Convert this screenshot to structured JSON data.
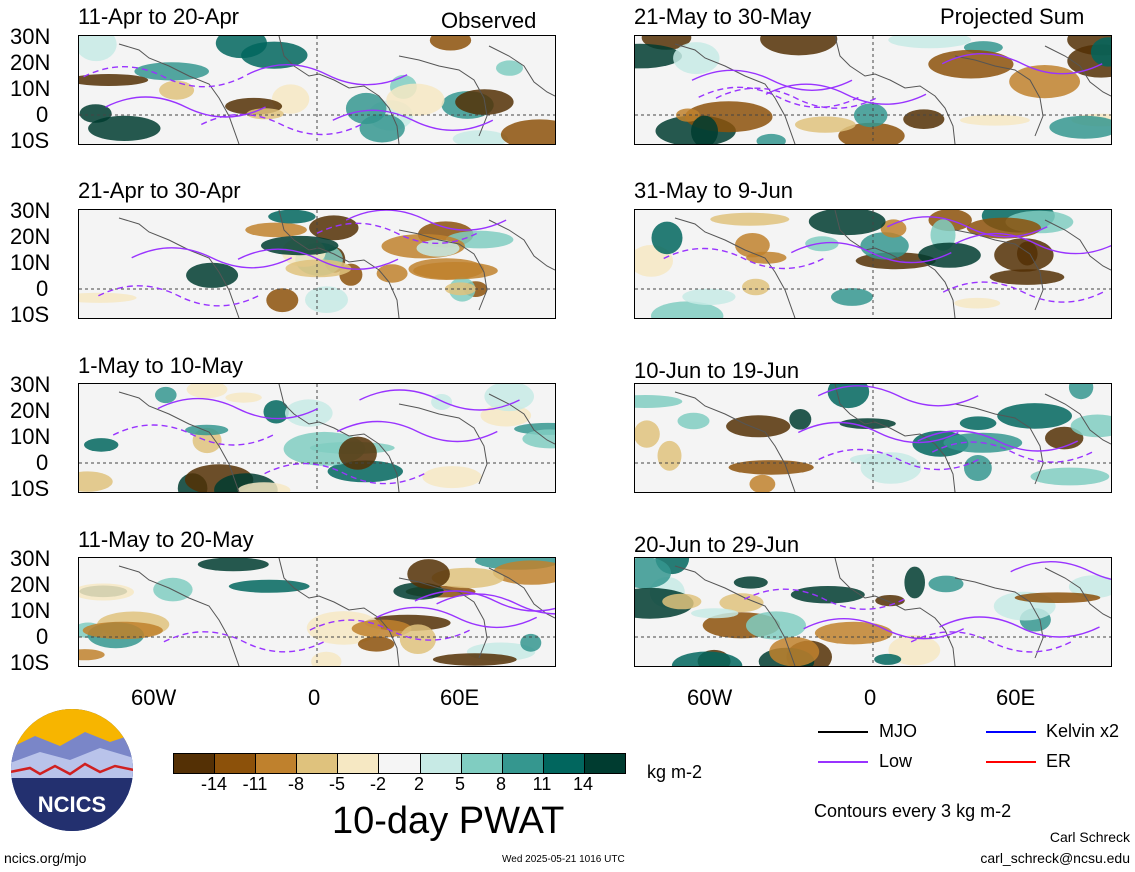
{
  "headers": {
    "observed": "Observed",
    "projected": "Projected Sum"
  },
  "panels_left": [
    "11-Apr to 20-Apr",
    "21-Apr to 30-Apr",
    "1-May to 10-May",
    "11-May to 20-May"
  ],
  "panels_right": [
    "21-May to 30-May",
    "31-May to 9-Jun",
    "10-Jun to 19-Jun",
    "20-Jun to 29-Jun"
  ],
  "lat_ticks": [
    "30N",
    "20N",
    "10N",
    "0",
    "10S"
  ],
  "lon_ticks": [
    "60W",
    "0",
    "60E"
  ],
  "colorbar": {
    "ticks": [
      "-14",
      "-11",
      "-8",
      "-5",
      "-2",
      "2",
      "5",
      "8",
      "11",
      "14"
    ],
    "colors": [
      "#543005",
      "#8c510a",
      "#bf812d",
      "#dfc27d",
      "#f6e8c3",
      "#f5f5f5",
      "#c7eae5",
      "#80cdc1",
      "#35978f",
      "#01665e",
      "#003c30"
    ],
    "units": "kg m-2",
    "title": "10-day PWAT"
  },
  "legend": {
    "mjo": "MJO",
    "kelvin": "Kelvin x2",
    "low": "Low",
    "er": "ER",
    "colors": {
      "mjo": "#000000",
      "kelvin": "#0000ff",
      "low": "#9933ff",
      "er": "#ff0000"
    },
    "contours_note": "Contours every 3 kg m-2"
  },
  "logo": {
    "text": "NCICS"
  },
  "footer": {
    "url": "ncics.org/mjo",
    "timestamp": "Wed 2025-05-21 1016 UTC",
    "author": "Carl Schreck",
    "email": "carl_schreck@ncsu.edu"
  }
}
